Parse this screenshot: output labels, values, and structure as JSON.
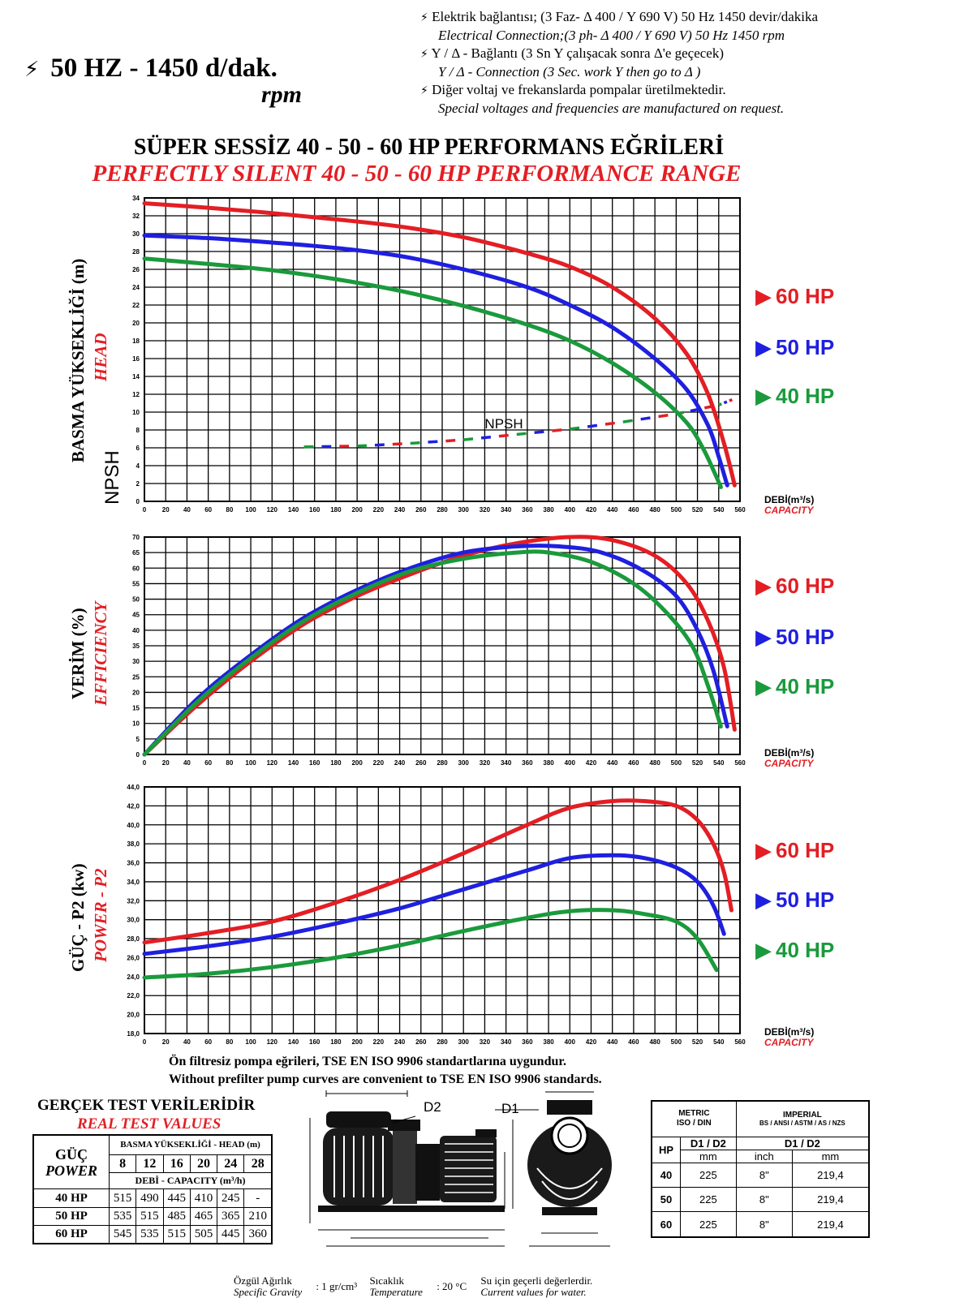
{
  "header": {
    "freq_title": "50 HZ - 1450 d/dak.",
    "freq_rpm": "rpm",
    "bolt_symbol": "⚡",
    "notes": [
      {
        "tr": "Elektrik bağlantısı; (3 Faz- Δ 400 / Y 690 V) 50 Hz 1450 devir/dakika",
        "en": "Electrical Connection;(3 ph- Δ 400 / Y 690 V) 50 Hz 1450 rpm"
      },
      {
        "tr": "Y / Δ - Bağlantı (3 Sn Y çalışacak sonra Δ'e geçecek)",
        "en": "Y / Δ - Connection (3 Sec. work Y then go to Δ )"
      },
      {
        "tr": "Diğer voltaj ve frekanslarda pompalar üretilmektedir.",
        "en": "Special voltages and frequencies  are manufactured on request."
      }
    ],
    "title_tr": "SÜPER SESSİZ 40 - 50 - 60 HP PERFORMANS EĞRİLERİ",
    "title_en": "PERFECTLY SILENT 40 - 50 - 60 HP PERFORMANCE RANGE"
  },
  "legend": {
    "hp60": "60  HP",
    "hp50": "50  HP",
    "hp40": "40  HP",
    "marker": "▶"
  },
  "colors": {
    "hp60": "#e31e24",
    "hp50": "#1f1fe0",
    "hp40": "#1a9a3c",
    "grid": "#000000"
  },
  "axis_common": {
    "xlabel_tr": "DEBİ(m³/s)",
    "xlabel_en": "CAPACITY"
  },
  "chart_data": [
    {
      "type": "line",
      "ylabel_tr": "BASMA YÜKSEKLİĞİ (m)",
      "ylabel_en": "HEAD",
      "ylabel_extra": "NPSH",
      "annotation": "NPSH",
      "xlim": [
        0,
        560
      ],
      "ylim": [
        0,
        34
      ],
      "xticks": [
        0,
        20,
        40,
        60,
        80,
        100,
        120,
        140,
        160,
        180,
        200,
        220,
        240,
        260,
        280,
        300,
        320,
        340,
        360,
        380,
        400,
        420,
        440,
        460,
        480,
        500,
        520,
        540,
        560
      ],
      "yticks": [
        0,
        2,
        4,
        6,
        8,
        10,
        12,
        14,
        16,
        18,
        20,
        22,
        24,
        26,
        28,
        30,
        32,
        34
      ],
      "series": [
        {
          "name": "60 HP",
          "x": [
            0,
            60,
            120,
            180,
            240,
            300,
            360,
            400,
            440,
            480,
            510,
            530,
            545,
            555
          ],
          "y": [
            33.4,
            32.9,
            32.3,
            31.6,
            30.8,
            29.6,
            27.8,
            26.3,
            24.0,
            20.5,
            16.5,
            12.0,
            6.5,
            1.8
          ]
        },
        {
          "name": "50 HP",
          "x": [
            0,
            60,
            120,
            180,
            240,
            300,
            360,
            400,
            440,
            480,
            510,
            530,
            540,
            548
          ],
          "y": [
            29.8,
            29.5,
            29.0,
            28.4,
            27.5,
            26.0,
            24.0,
            22.0,
            19.5,
            16.0,
            12.5,
            8.5,
            5.0,
            1.8
          ]
        },
        {
          "name": "40 HP",
          "x": [
            0,
            60,
            120,
            180,
            240,
            300,
            360,
            400,
            440,
            480,
            510,
            525,
            535,
            542
          ],
          "y": [
            27.2,
            26.6,
            25.9,
            24.9,
            23.6,
            21.9,
            19.8,
            18.0,
            15.5,
            12.2,
            8.8,
            6.0,
            3.5,
            1.6
          ]
        },
        {
          "name": "NPSH",
          "x": [
            150,
            200,
            250,
            300,
            350,
            400,
            450,
            500,
            540,
            555
          ],
          "y": [
            6.1,
            6.2,
            6.5,
            6.9,
            7.5,
            8.1,
            8.9,
            9.8,
            10.8,
            11.5
          ]
        }
      ]
    },
    {
      "type": "line",
      "ylabel_tr": "VERİM (%)",
      "ylabel_en": "EFFICIENCY",
      "xlim": [
        0,
        560
      ],
      "ylim": [
        0,
        70
      ],
      "xticks": [
        0,
        20,
        40,
        60,
        80,
        100,
        120,
        140,
        160,
        180,
        200,
        220,
        240,
        260,
        280,
        300,
        320,
        340,
        360,
        380,
        400,
        420,
        440,
        460,
        480,
        500,
        520,
        540,
        560
      ],
      "yticks": [
        0,
        5,
        10,
        15,
        20,
        25,
        30,
        35,
        40,
        45,
        50,
        55,
        60,
        65,
        70
      ],
      "series": [
        {
          "name": "60 HP",
          "x": [
            0,
            50,
            100,
            150,
            200,
            250,
            300,
            350,
            400,
            440,
            480,
            510,
            530,
            545,
            555
          ],
          "y": [
            0,
            16,
            30,
            42,
            51,
            58,
            64,
            68,
            70,
            69,
            64,
            55,
            43,
            28,
            8
          ]
        },
        {
          "name": "50 HP",
          "x": [
            0,
            50,
            100,
            150,
            200,
            250,
            300,
            350,
            390,
            430,
            470,
            500,
            520,
            535,
            548
          ],
          "y": [
            0,
            18,
            32,
            44,
            53,
            60,
            65,
            67,
            67,
            65,
            59,
            51,
            40,
            27,
            9
          ]
        },
        {
          "name": "40 HP",
          "x": [
            0,
            50,
            100,
            150,
            200,
            250,
            300,
            350,
            380,
            420,
            460,
            490,
            515,
            530,
            542
          ],
          "y": [
            0,
            17,
            31,
            43,
            52,
            59,
            63,
            65,
            65,
            62,
            55,
            46,
            35,
            22,
            9
          ]
        }
      ]
    },
    {
      "type": "line",
      "ylabel_tr": "GÜÇ - P2 (kw)",
      "ylabel_en": "POWER - P2",
      "xlim": [
        0,
        560
      ],
      "ylim": [
        18,
        44
      ],
      "xticks": [
        0,
        20,
        40,
        60,
        80,
        100,
        120,
        140,
        160,
        180,
        200,
        220,
        240,
        260,
        280,
        300,
        320,
        340,
        360,
        380,
        400,
        420,
        440,
        460,
        480,
        500,
        520,
        540,
        560
      ],
      "yticks": [
        "18,0",
        "20,0",
        "22,0",
        "24,0",
        "26,0",
        "28,0",
        "30,0",
        "32,0",
        "34,0",
        "36,0",
        "38,0",
        "40,0",
        "42,0",
        "44,0"
      ],
      "series": [
        {
          "name": "60 HP",
          "x": [
            0,
            60,
            120,
            180,
            240,
            300,
            360,
            400,
            440,
            470,
            500,
            520,
            535,
            545,
            552
          ],
          "y": [
            27.6,
            28.6,
            29.8,
            31.8,
            34.2,
            37.0,
            40.0,
            41.8,
            42.5,
            42.5,
            42.0,
            40.5,
            38.0,
            35.0,
            31.0
          ]
        },
        {
          "name": "50 HP",
          "x": [
            0,
            60,
            120,
            180,
            240,
            300,
            360,
            400,
            440,
            470,
            500,
            520,
            535,
            545
          ],
          "y": [
            26.4,
            27.2,
            28.2,
            29.6,
            31.2,
            33.2,
            35.2,
            36.5,
            36.8,
            36.5,
            35.5,
            34.0,
            31.5,
            28.5
          ]
        },
        {
          "name": "40 HP",
          "x": [
            0,
            60,
            120,
            180,
            240,
            300,
            360,
            400,
            440,
            470,
            500,
            520,
            538
          ],
          "y": [
            23.9,
            24.3,
            25.0,
            26.0,
            27.3,
            28.8,
            30.2,
            30.9,
            31.0,
            30.6,
            29.8,
            28.0,
            24.7
          ]
        }
      ]
    }
  ],
  "standards": {
    "tr": "Ön filtresiz pompa eğrileri, TSE EN ISO 9906 standartlarına uygundur.",
    "en": "Without prefilter pump curves are convenient to TSE EN ISO 9906 standards."
  },
  "test_table": {
    "title_tr": "GERÇEK TEST VERİLERİDİR",
    "title_en": "REAL TEST VALUES",
    "power_tr": "GÜÇ",
    "power_en": "POWER",
    "head_label": "BASMA YÜKSEKLİĞİ - HEAD (m)",
    "capacity_label": "DEBİ - CAPACITY (m³/h)",
    "heads": [
      "8",
      "12",
      "16",
      "20",
      "24",
      "28"
    ],
    "rows": [
      {
        "hp": "40 HP",
        "values": [
          "515",
          "490",
          "445",
          "410",
          "245",
          "-"
        ]
      },
      {
        "hp": "50 HP",
        "values": [
          "535",
          "515",
          "485",
          "465",
          "365",
          "210"
        ]
      },
      {
        "hp": "60 HP",
        "values": [
          "545",
          "535",
          "515",
          "505",
          "445",
          "360"
        ]
      }
    ]
  },
  "drawing": {
    "d1": "D1",
    "d2": "D2"
  },
  "metric_table": {
    "metric_title": "METRIC\nISO / DIN",
    "imperial_title": "IMPERIAL",
    "imperial_sub": "BS / ANSI / ASTM / AS / NZS",
    "hp_label": "HP",
    "d1d2": "D1 / D2",
    "units": [
      "mm",
      "inch",
      "mm"
    ],
    "rows": [
      {
        "hp": "40",
        "mm": "225",
        "inch": "8\"",
        "mm2": "219,4"
      },
      {
        "hp": "50",
        "mm": "225",
        "inch": "8\"",
        "mm2": "219,4"
      },
      {
        "hp": "60",
        "mm": "225",
        "inch": "8\"",
        "mm2": "219,4"
      }
    ]
  },
  "footer": {
    "gravity_tr": "Özgül Ağırlık",
    "gravity_en": "Specific Gravity",
    "gravity_val": ": 1 gr/cm³",
    "temp_tr": "Sıcaklık",
    "temp_en": "Temperature",
    "temp_val": ": 20 °C",
    "water_tr": "Su için geçerli değerlerdir.",
    "water_en": "Current values for water."
  }
}
